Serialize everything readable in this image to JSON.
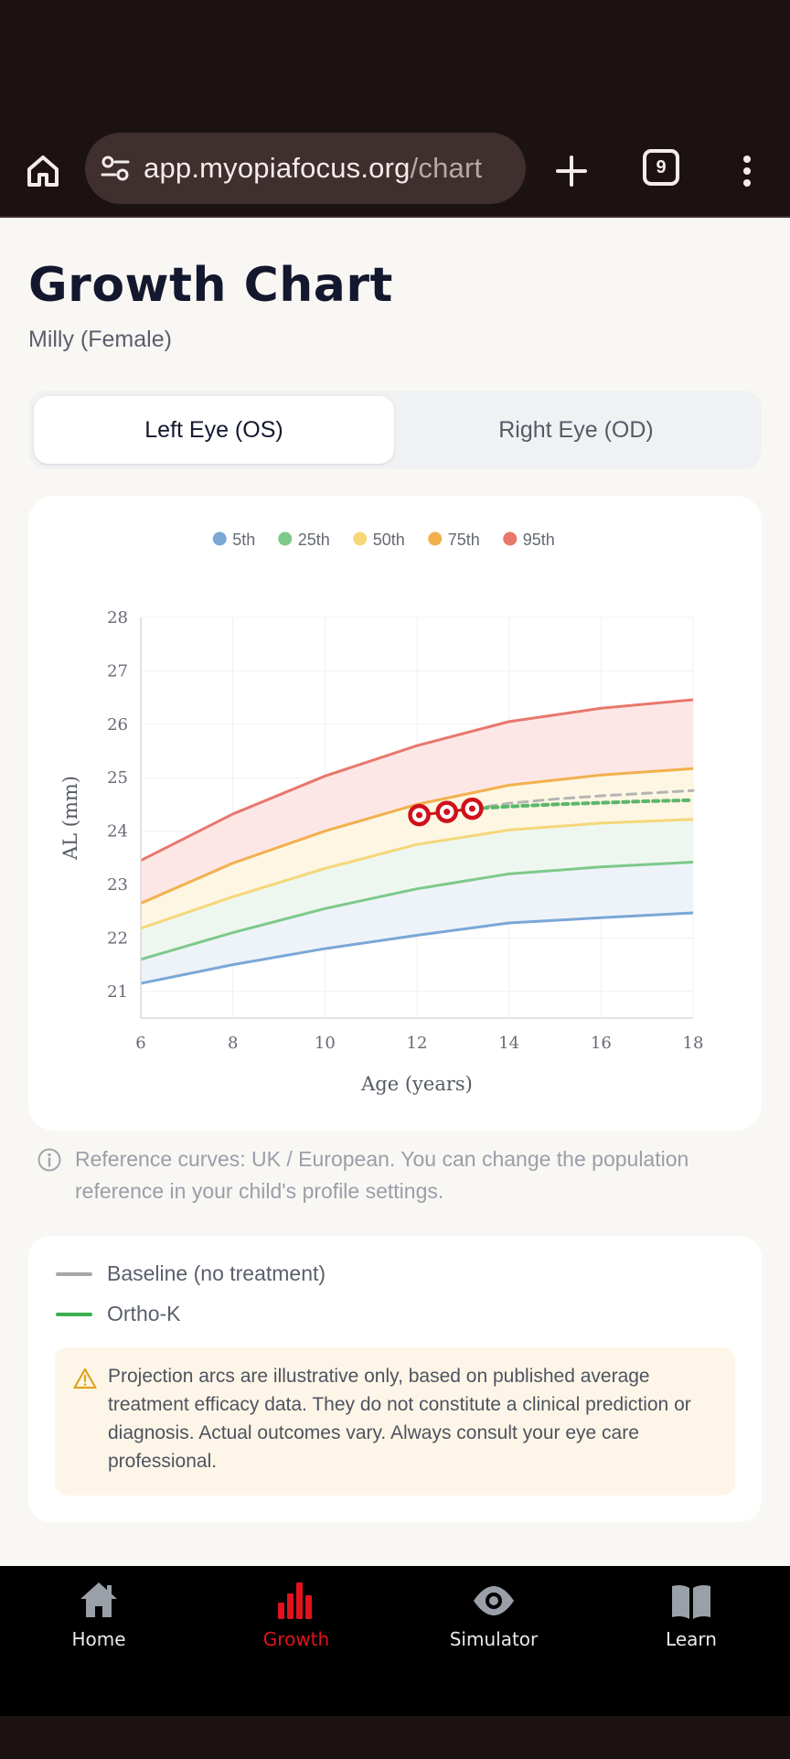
{
  "browser": {
    "url_host": "app.myopiafocus.org",
    "url_path": "/chart",
    "tab_count": "9"
  },
  "page": {
    "title": "Growth Chart",
    "subtitle": "Milly (Female)"
  },
  "eye_toggle": {
    "left_label": "Left Eye (OS)",
    "right_label": "Right Eye (OD)",
    "selected": "left"
  },
  "chart_data": {
    "type": "line",
    "title": "",
    "xlabel": "Age (years)",
    "ylabel": "AL (mm)",
    "xlim": [
      6,
      18
    ],
    "ylim": [
      20.5,
      28
    ],
    "x_ticks": [
      6,
      8,
      10,
      12,
      14,
      16,
      18
    ],
    "y_ticks": [
      21,
      22,
      23,
      24,
      25,
      26,
      27,
      28
    ],
    "grid": true,
    "legend_position": "top",
    "x": [
      6,
      8,
      10,
      12,
      14,
      16,
      18
    ],
    "series": [
      {
        "name": "5th",
        "color": "#7aa7d6",
        "values": [
          21.15,
          21.5,
          21.8,
          22.05,
          22.28,
          22.38,
          22.47
        ]
      },
      {
        "name": "25th",
        "color": "#7dc98a",
        "values": [
          21.6,
          22.1,
          22.55,
          22.92,
          23.2,
          23.33,
          23.42
        ]
      },
      {
        "name": "50th",
        "color": "#f5d77a",
        "values": [
          22.18,
          22.77,
          23.3,
          23.75,
          24.02,
          24.15,
          24.22
        ]
      },
      {
        "name": "75th",
        "color": "#f2b04d",
        "values": [
          22.65,
          23.4,
          24.0,
          24.5,
          24.86,
          25.05,
          25.17
        ]
      },
      {
        "name": "95th",
        "color": "#e8776c",
        "values": [
          23.45,
          24.32,
          25.03,
          25.6,
          26.05,
          26.3,
          26.46
        ]
      }
    ],
    "measurements": {
      "color": "#d0101a",
      "x": [
        12.05,
        12.65,
        13.2
      ],
      "y": [
        24.3,
        24.36,
        24.42
      ]
    },
    "projections": [
      {
        "name": "Baseline (no treatment)",
        "color": "#b4b4b4",
        "x": [
          13.2,
          14,
          15,
          16,
          17,
          18
        ],
        "y": [
          24.42,
          24.52,
          24.6,
          24.66,
          24.71,
          24.76
        ]
      },
      {
        "name": "Ortho-K",
        "color": "#5cb66a",
        "x": [
          13.2,
          14,
          15,
          16,
          17,
          18
        ],
        "y": [
          24.42,
          24.46,
          24.5,
          24.53,
          24.56,
          24.58
        ]
      }
    ]
  },
  "info_note": "Reference curves: UK / European. You can change the population reference in your child's profile settings.",
  "projection_legend": {
    "baseline_label": "Baseline (no treatment)",
    "orthok_label": "Ortho-K",
    "disclaimer": "Projection arcs are illustrative only, based on published average treatment efficacy data. They do not constitute a clinical prediction or diagnosis. Actual outcomes vary. Always consult your eye care professional."
  },
  "nav": {
    "items": [
      {
        "label": "Home",
        "icon": "home-icon"
      },
      {
        "label": "Growth",
        "icon": "bar-chart-icon",
        "active": true
      },
      {
        "label": "Simulator",
        "icon": "eye-icon"
      },
      {
        "label": "Learn",
        "icon": "book-icon"
      }
    ]
  },
  "colors": {
    "accent": "#e0121d",
    "browser_bar": "#1c1212"
  }
}
